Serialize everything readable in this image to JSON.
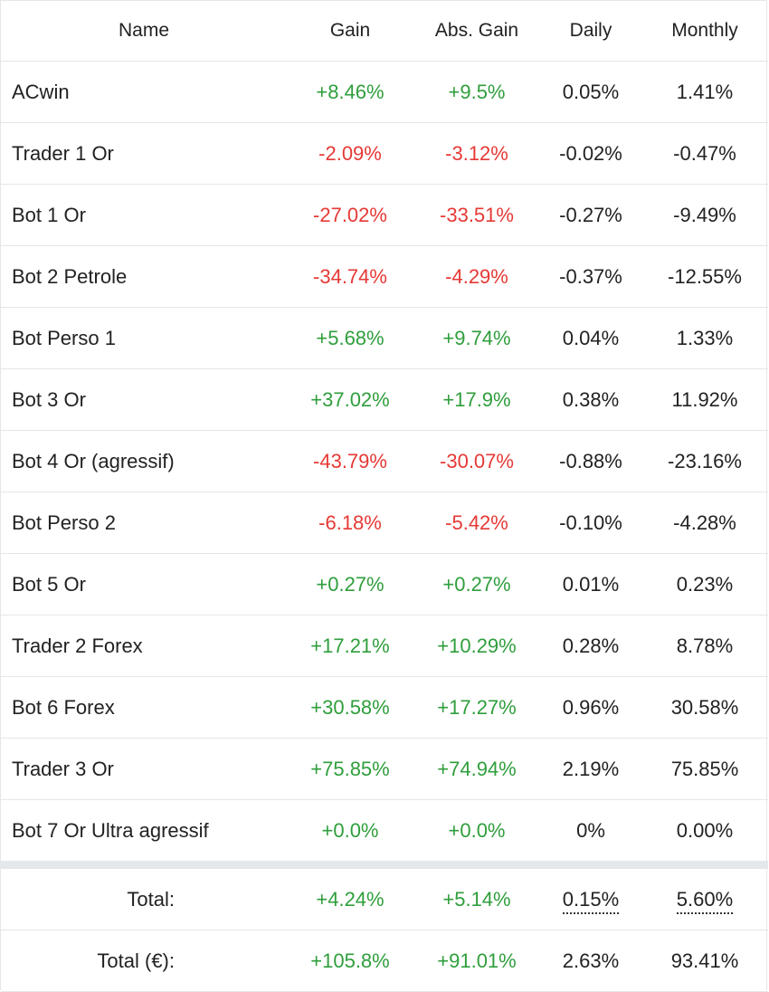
{
  "table": {
    "headers": {
      "name": "Name",
      "gain": "Gain",
      "abs_gain": "Abs. Gain",
      "daily": "Daily",
      "monthly": "Monthly"
    },
    "rows": [
      {
        "name": "ACwin",
        "gain": "+8.46%",
        "abs_gain": "+9.5%",
        "daily": "0.05%",
        "monthly": "1.41%",
        "trend": "pos"
      },
      {
        "name": "Trader 1 Or",
        "gain": "-2.09%",
        "abs_gain": "-3.12%",
        "daily": "-0.02%",
        "monthly": "-0.47%",
        "trend": "neg"
      },
      {
        "name": "Bot 1 Or",
        "gain": "-27.02%",
        "abs_gain": "-33.51%",
        "daily": "-0.27%",
        "monthly": "-9.49%",
        "trend": "neg"
      },
      {
        "name": "Bot 2 Petrole",
        "gain": "-34.74%",
        "abs_gain": "-4.29%",
        "daily": "-0.37%",
        "monthly": "-12.55%",
        "trend": "neg"
      },
      {
        "name": "Bot Perso 1",
        "gain": "+5.68%",
        "abs_gain": "+9.74%",
        "daily": "0.04%",
        "monthly": "1.33%",
        "trend": "pos"
      },
      {
        "name": "Bot 3 Or",
        "gain": "+37.02%",
        "abs_gain": "+17.9%",
        "daily": "0.38%",
        "monthly": "11.92%",
        "trend": "pos"
      },
      {
        "name": "Bot 4 Or (agressif)",
        "gain": "-43.79%",
        "abs_gain": "-30.07%",
        "daily": "-0.88%",
        "monthly": "-23.16%",
        "trend": "neg"
      },
      {
        "name": "Bot Perso 2",
        "gain": "-6.18%",
        "abs_gain": "-5.42%",
        "daily": "-0.10%",
        "monthly": "-4.28%",
        "trend": "neg"
      },
      {
        "name": "Bot 5 Or",
        "gain": "+0.27%",
        "abs_gain": "+0.27%",
        "daily": "0.01%",
        "monthly": "0.23%",
        "trend": "pos"
      },
      {
        "name": "Trader 2 Forex",
        "gain": "+17.21%",
        "abs_gain": "+10.29%",
        "daily": "0.28%",
        "monthly": "8.78%",
        "trend": "pos"
      },
      {
        "name": "Bot 6 Forex",
        "gain": "+30.58%",
        "abs_gain": "+17.27%",
        "daily": "0.96%",
        "monthly": "30.58%",
        "trend": "pos"
      },
      {
        "name": "Trader 3 Or",
        "gain": "+75.85%",
        "abs_gain": "+74.94%",
        "daily": "2.19%",
        "monthly": "75.85%",
        "trend": "pos"
      },
      {
        "name": "Bot 7 Or Ultra agressif",
        "gain": "+0.0%",
        "abs_gain": "+0.0%",
        "daily": "0%",
        "monthly": "0.00%",
        "trend": "pos"
      }
    ],
    "totals": [
      {
        "label": "Total:",
        "gain": "+4.24%",
        "abs_gain": "+5.14%",
        "daily": "0.15%",
        "monthly": "5.60%"
      },
      {
        "label": "Total (€):",
        "gain": "+105.8%",
        "abs_gain": "+91.01%",
        "daily": "2.63%",
        "monthly": "93.41%"
      }
    ]
  },
  "colors": {
    "positive": "#2f9e3c",
    "negative": "#e53935",
    "border": "#e4e6e8",
    "separator": "#e4e8ec"
  }
}
